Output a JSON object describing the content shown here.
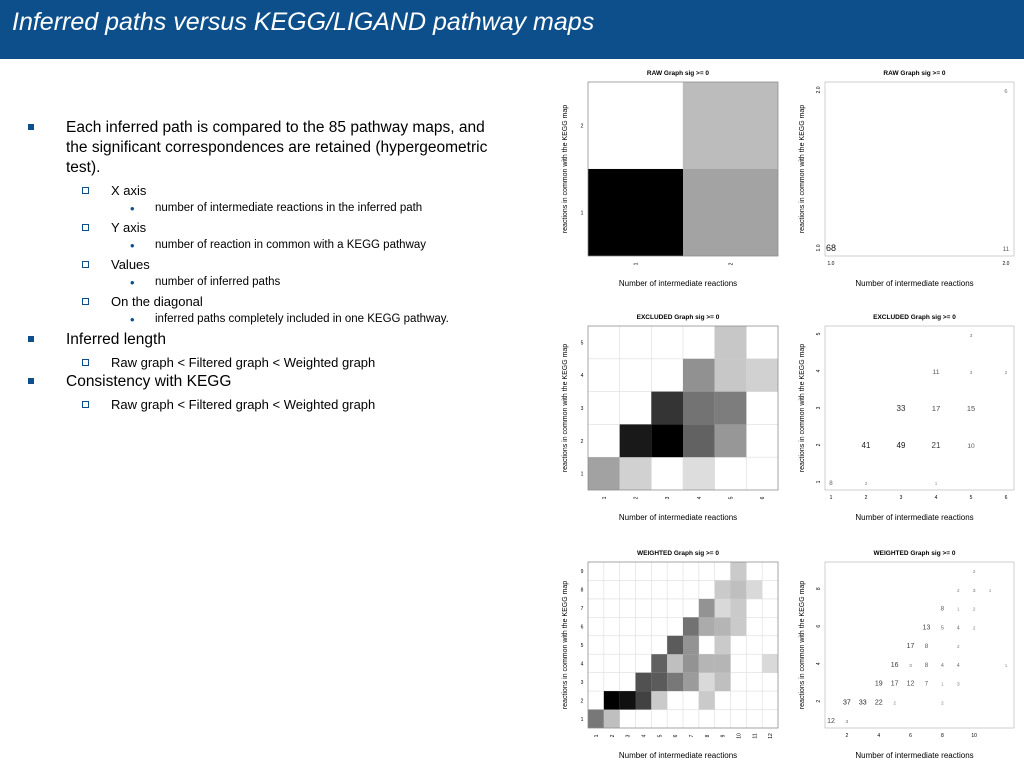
{
  "slide": {
    "title": "Inferred paths versus KEGG/LIGAND pathway maps",
    "accent_color": "#0d4f8b",
    "bullets": [
      {
        "text": "Each inferred path is compared to the 85 pathway maps, and the significant correspondences are retained (hypergeometric test).",
        "sub": [
          {
            "text": "X axis",
            "sub": [
              "number of intermediate reactions in the inferred path"
            ]
          },
          {
            "text": "Y axis",
            "sub": [
              "number of reaction in common with a KEGG pathway"
            ]
          },
          {
            "text": "Values",
            "sub": [
              "number of inferred paths"
            ]
          },
          {
            "text": "On the diagonal",
            "sub": [
              "inferred paths completely included in one KEGG pathway."
            ]
          }
        ]
      },
      {
        "text": "Inferred length",
        "sub": [
          {
            "text": "Raw graph < Filtered graph < Weighted graph",
            "sub": []
          }
        ]
      },
      {
        "text": "Consistency with KEGG",
        "sub": [
          {
            "text": "Raw graph < Filtered graph < Weighted graph",
            "sub": []
          }
        ]
      }
    ]
  },
  "chart_data": [
    {
      "type": "heatmap",
      "title": "RAW Graph sig >= 0",
      "xlabel": "Number of intermediate reactions",
      "ylabel": "reactions in common with the KEGG map",
      "x_ticks": [
        "1",
        "2"
      ],
      "y_ticks": [
        "1",
        "2"
      ],
      "cells": [
        {
          "x": 1,
          "y": 1,
          "value": 68
        },
        {
          "x": 2,
          "y": 1,
          "value": 11
        },
        {
          "x": 2,
          "y": 2,
          "value": 6
        }
      ]
    },
    {
      "type": "scatter",
      "title": "RAW Graph sig >= 0",
      "xlabel": "Number of intermediate reactions",
      "ylabel": "reactions in common with the KEGG map",
      "x_ticks": [
        "1.0",
        "2.0"
      ],
      "y_ticks": [
        "1.0",
        "2.0"
      ],
      "labels": [
        {
          "x": 1,
          "y": 1,
          "text": "68"
        },
        {
          "x": 2,
          "y": 1,
          "text": "11"
        },
        {
          "x": 2,
          "y": 2,
          "text": "6"
        }
      ]
    },
    {
      "type": "heatmap",
      "title": "EXCLUDED Graph sig >= 0",
      "xlabel": "Number of intermediate reactions",
      "ylabel": "reactions in common with the KEGG map",
      "x_ticks": [
        "1",
        "2",
        "3",
        "4",
        "5",
        "6"
      ],
      "y_ticks": [
        "1",
        "2",
        "3",
        "4",
        "5"
      ],
      "cells": [
        {
          "x": 1,
          "y": 1,
          "value": 8
        },
        {
          "x": 2,
          "y": 1,
          "value": 2
        },
        {
          "x": 4,
          "y": 1,
          "value": 1
        },
        {
          "x": 2,
          "y": 2,
          "value": 41
        },
        {
          "x": 3,
          "y": 2,
          "value": 49
        },
        {
          "x": 4,
          "y": 2,
          "value": 21
        },
        {
          "x": 5,
          "y": 2,
          "value": 10
        },
        {
          "x": 3,
          "y": 3,
          "value": 33
        },
        {
          "x": 4,
          "y": 3,
          "value": 17
        },
        {
          "x": 5,
          "y": 3,
          "value": 15
        },
        {
          "x": 4,
          "y": 4,
          "value": 11
        },
        {
          "x": 5,
          "y": 4,
          "value": 3
        },
        {
          "x": 6,
          "y": 4,
          "value": 2
        },
        {
          "x": 5,
          "y": 5,
          "value": 3
        }
      ]
    },
    {
      "type": "scatter",
      "title": "EXCLUDED Graph sig >= 0",
      "xlabel": "Number of intermediate reactions",
      "ylabel": "reactions in common with the KEGG map",
      "x_ticks": [
        "1",
        "2",
        "3",
        "4",
        "5",
        "6"
      ],
      "y_ticks": [
        "1",
        "2",
        "3",
        "4",
        "5"
      ],
      "labels": [
        {
          "x": 1,
          "y": 1,
          "text": "8"
        },
        {
          "x": 2,
          "y": 1,
          "text": "2"
        },
        {
          "x": 4,
          "y": 1,
          "text": "1"
        },
        {
          "x": 2,
          "y": 2,
          "text": "41"
        },
        {
          "x": 3,
          "y": 2,
          "text": "49"
        },
        {
          "x": 4,
          "y": 2,
          "text": "21"
        },
        {
          "x": 5,
          "y": 2,
          "text": "10"
        },
        {
          "x": 3,
          "y": 3,
          "text": "33"
        },
        {
          "x": 4,
          "y": 3,
          "text": "17"
        },
        {
          "x": 5,
          "y": 3,
          "text": "15"
        },
        {
          "x": 4,
          "y": 4,
          "text": "11"
        },
        {
          "x": 5,
          "y": 4,
          "text": "3"
        },
        {
          "x": 6,
          "y": 4,
          "text": "2"
        },
        {
          "x": 5,
          "y": 5,
          "text": "3"
        }
      ]
    },
    {
      "type": "heatmap",
      "title": "WEIGHTED Graph sig >= 0",
      "xlabel": "Number of intermediate reactions",
      "ylabel": "reactions in common with the KEGG map",
      "x_ticks": [
        "1",
        "2",
        "3",
        "4",
        "5",
        "6",
        "7",
        "8",
        "9",
        "10",
        "11",
        "12"
      ],
      "y_ticks": [
        "1",
        "2",
        "3",
        "4",
        "5",
        "6",
        "7",
        "8",
        "9"
      ],
      "cells": [
        {
          "x": 1,
          "y": 1,
          "value": 12
        },
        {
          "x": 2,
          "y": 1,
          "value": 3
        },
        {
          "x": 2,
          "y": 2,
          "value": 37
        },
        {
          "x": 3,
          "y": 2,
          "value": 33
        },
        {
          "x": 4,
          "y": 2,
          "value": 22
        },
        {
          "x": 5,
          "y": 2,
          "value": 2
        },
        {
          "x": 8,
          "y": 2,
          "value": 2
        },
        {
          "x": 4,
          "y": 3,
          "value": 19
        },
        {
          "x": 5,
          "y": 3,
          "value": 17
        },
        {
          "x": 6,
          "y": 3,
          "value": 12
        },
        {
          "x": 7,
          "y": 3,
          "value": 7
        },
        {
          "x": 8,
          "y": 3,
          "value": 1
        },
        {
          "x": 9,
          "y": 3,
          "value": 3
        },
        {
          "x": 5,
          "y": 4,
          "value": 16
        },
        {
          "x": 6,
          "y": 4,
          "value": 3
        },
        {
          "x": 7,
          "y": 4,
          "value": 8
        },
        {
          "x": 8,
          "y": 4,
          "value": 4
        },
        {
          "x": 9,
          "y": 4,
          "value": 4
        },
        {
          "x": 12,
          "y": 4,
          "value": 1
        },
        {
          "x": 6,
          "y": 5,
          "value": 17
        },
        {
          "x": 7,
          "y": 5,
          "value": 8
        },
        {
          "x": 9,
          "y": 5,
          "value": 2
        },
        {
          "x": 7,
          "y": 6,
          "value": 13
        },
        {
          "x": 8,
          "y": 6,
          "value": 5
        },
        {
          "x": 9,
          "y": 6,
          "value": 4
        },
        {
          "x": 10,
          "y": 6,
          "value": 2
        },
        {
          "x": 8,
          "y": 7,
          "value": 8
        },
        {
          "x": 9,
          "y": 7,
          "value": 1
        },
        {
          "x": 10,
          "y": 7,
          "value": 2
        },
        {
          "x": 9,
          "y": 8,
          "value": 2
        },
        {
          "x": 10,
          "y": 8,
          "value": 3
        },
        {
          "x": 11,
          "y": 8,
          "value": 1
        },
        {
          "x": 10,
          "y": 9,
          "value": 2
        }
      ]
    },
    {
      "type": "scatter",
      "title": "WEIGHTED Graph sig >= 0",
      "xlabel": "Number of intermediate reactions",
      "ylabel": "reactions in common with the KEGG map",
      "x_ticks": [
        "2",
        "4",
        "6",
        "8",
        "10"
      ],
      "y_ticks": [
        "2",
        "4",
        "6",
        "8"
      ],
      "labels": [
        {
          "x": 1,
          "y": 1,
          "text": "12"
        },
        {
          "x": 2,
          "y": 1,
          "text": "3"
        },
        {
          "x": 2,
          "y": 2,
          "text": "37"
        },
        {
          "x": 3,
          "y": 2,
          "text": "33"
        },
        {
          "x": 4,
          "y": 2,
          "text": "22"
        },
        {
          "x": 5,
          "y": 2,
          "text": "2"
        },
        {
          "x": 8,
          "y": 2,
          "text": "2"
        },
        {
          "x": 4,
          "y": 3,
          "text": "19"
        },
        {
          "x": 5,
          "y": 3,
          "text": "17"
        },
        {
          "x": 6,
          "y": 3,
          "text": "12"
        },
        {
          "x": 7,
          "y": 3,
          "text": "7"
        },
        {
          "x": 8,
          "y": 3,
          "text": "1"
        },
        {
          "x": 9,
          "y": 3,
          "text": "3"
        },
        {
          "x": 5,
          "y": 4,
          "text": "16"
        },
        {
          "x": 6,
          "y": 4,
          "text": "3"
        },
        {
          "x": 7,
          "y": 4,
          "text": "8"
        },
        {
          "x": 8,
          "y": 4,
          "text": "4"
        },
        {
          "x": 9,
          "y": 4,
          "text": "4"
        },
        {
          "x": 12,
          "y": 4,
          "text": "1"
        },
        {
          "x": 6,
          "y": 5,
          "text": "17"
        },
        {
          "x": 7,
          "y": 5,
          "text": "8"
        },
        {
          "x": 9,
          "y": 5,
          "text": "2"
        },
        {
          "x": 7,
          "y": 6,
          "text": "13"
        },
        {
          "x": 8,
          "y": 6,
          "text": "5"
        },
        {
          "x": 9,
          "y": 6,
          "text": "4"
        },
        {
          "x": 10,
          "y": 6,
          "text": "2"
        },
        {
          "x": 8,
          "y": 7,
          "text": "8"
        },
        {
          "x": 9,
          "y": 7,
          "text": "1"
        },
        {
          "x": 10,
          "y": 7,
          "text": "2"
        },
        {
          "x": 9,
          "y": 8,
          "text": "2"
        },
        {
          "x": 10,
          "y": 8,
          "text": "3"
        },
        {
          "x": 11,
          "y": 8,
          "text": "1"
        },
        {
          "x": 10,
          "y": 9,
          "text": "2"
        }
      ]
    }
  ]
}
